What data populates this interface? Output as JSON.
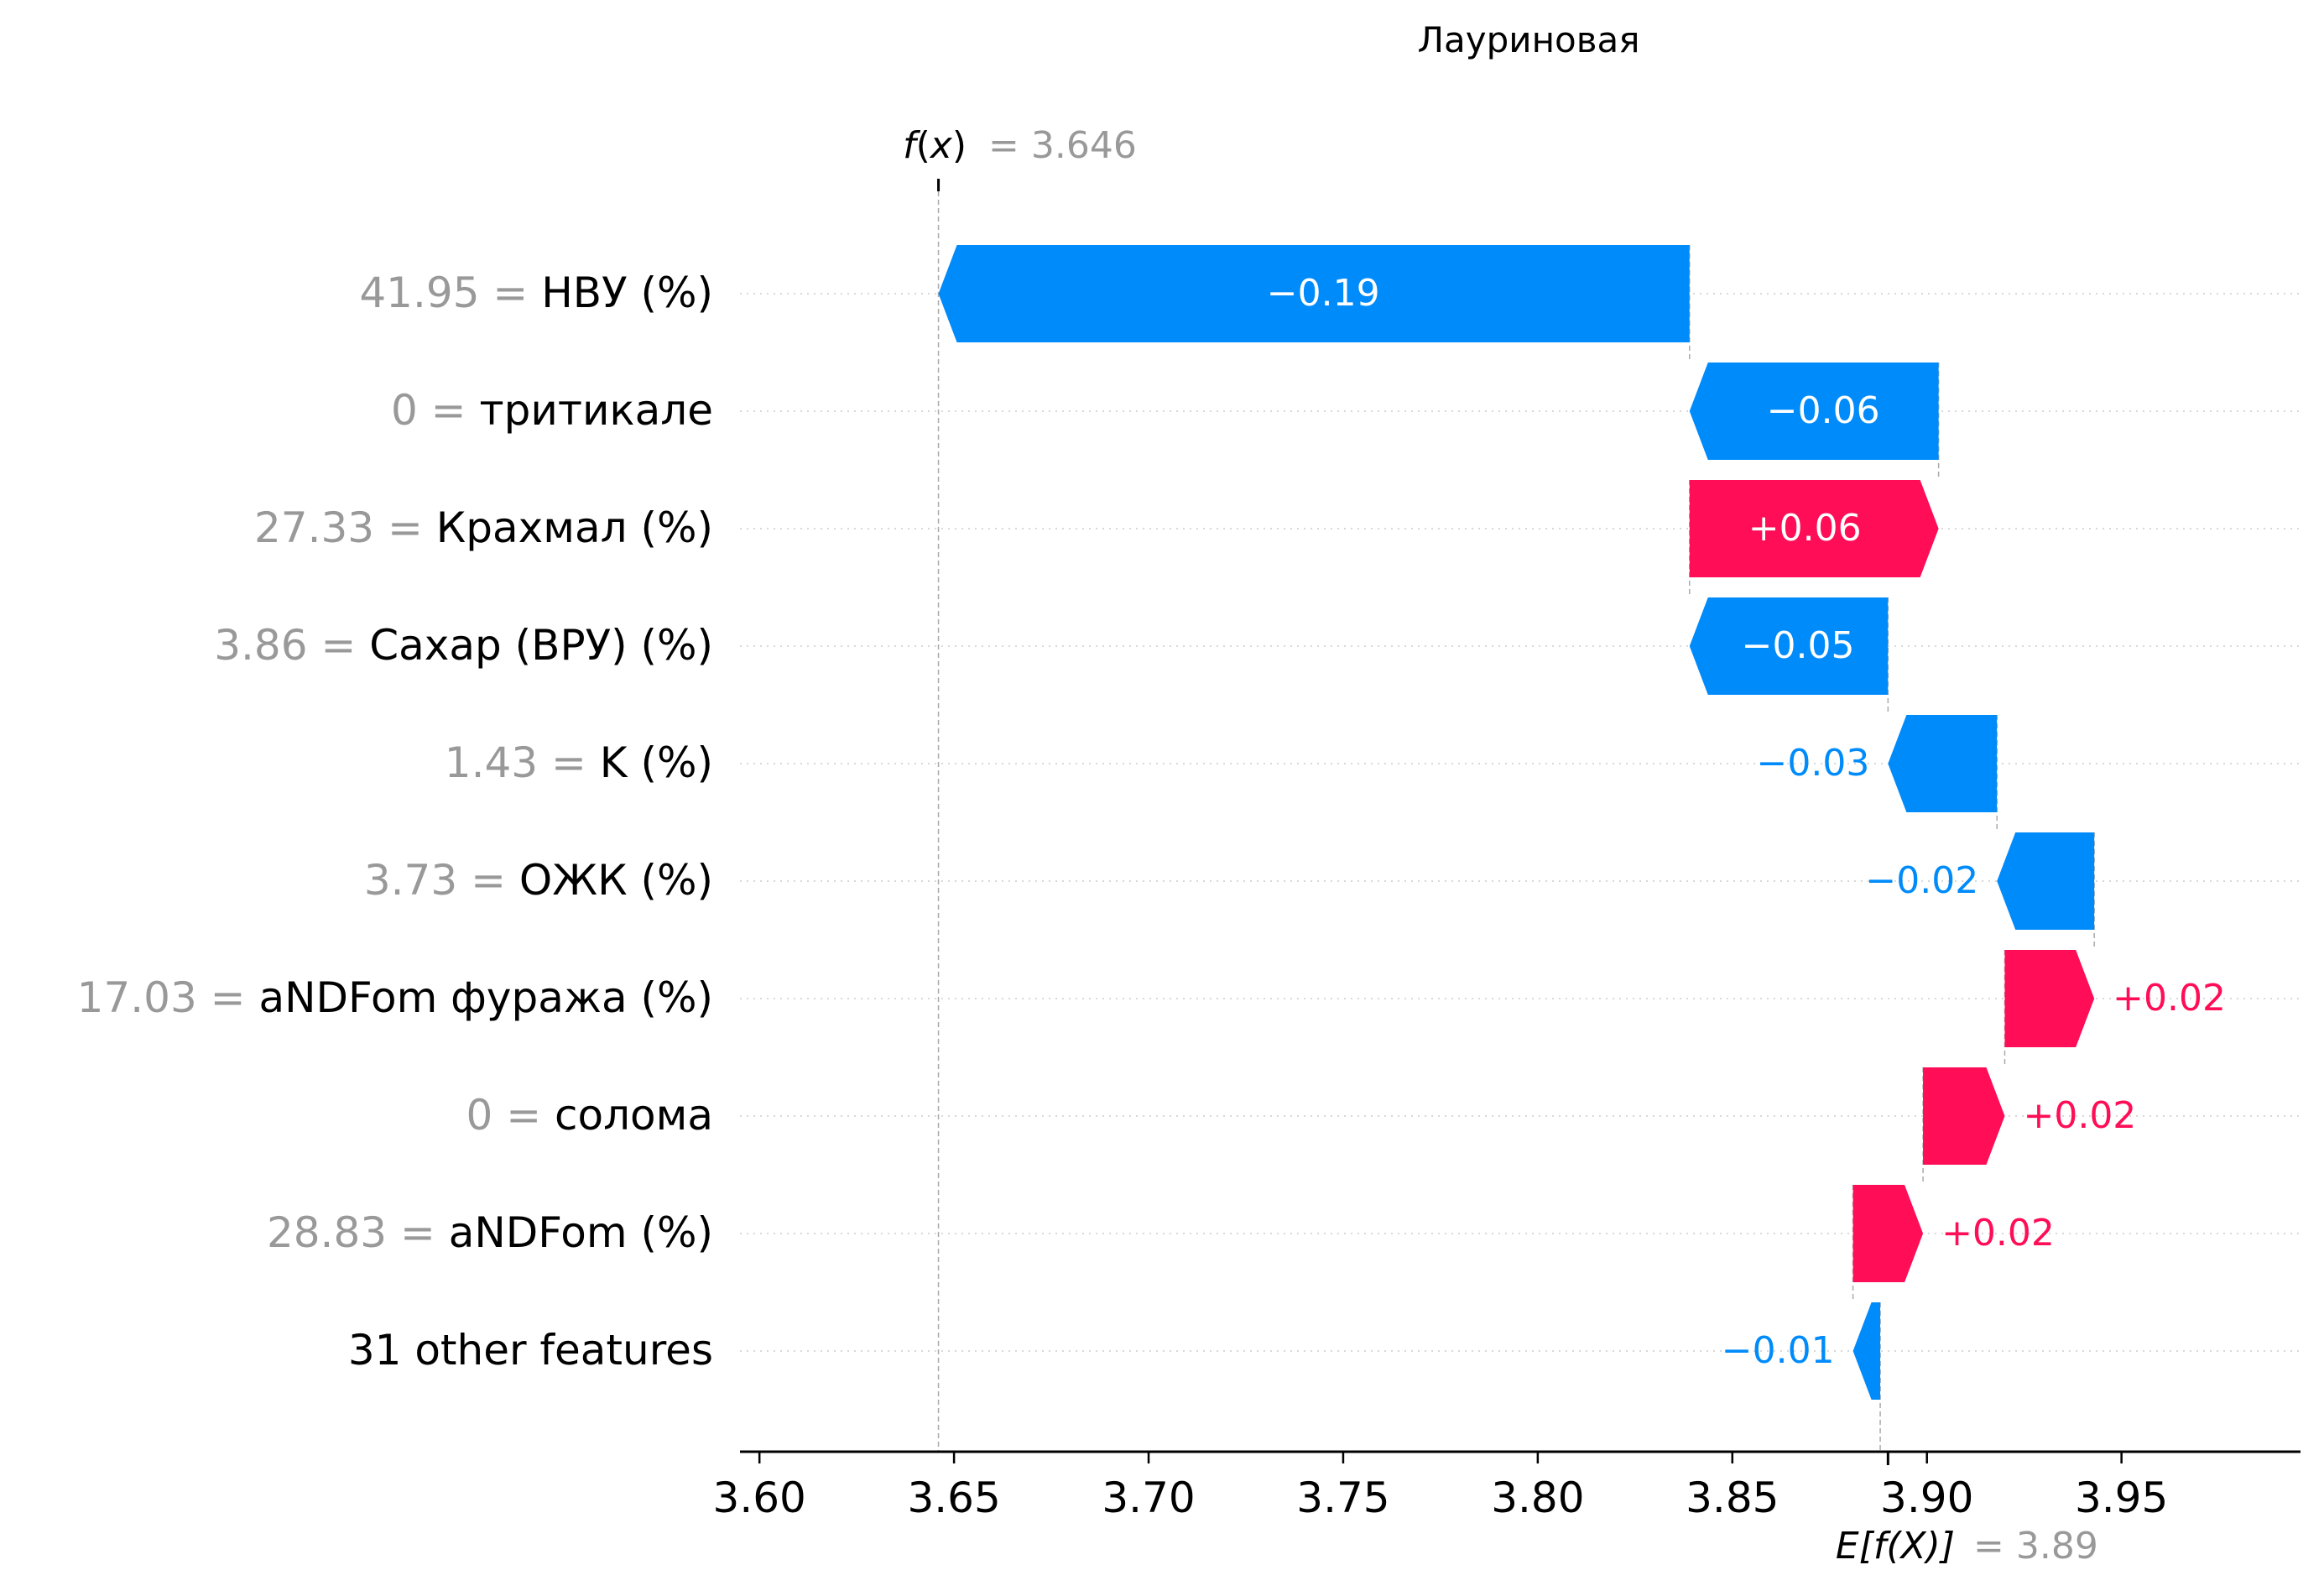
{
  "chart_data": {
    "type": "waterfall",
    "title": "Лауриновая",
    "fx": {
      "symbol_f": "f",
      "symbol_x": "x",
      "value_label": "= 3.646",
      "value": 3.646
    },
    "base": {
      "label_main": "E[f(X)]",
      "value_label": "= 3.89",
      "value": 3.89
    },
    "xlim": [
      3.595,
      3.996
    ],
    "xticks": [
      3.6,
      3.65,
      3.7,
      3.75,
      3.8,
      3.85,
      3.9,
      3.95
    ],
    "xtick_labels": [
      "3.60",
      "3.65",
      "3.70",
      "3.75",
      "3.80",
      "3.85",
      "3.90",
      "3.95"
    ],
    "colors": {
      "positive": "#ff0d57",
      "negative": "#008bfb",
      "value_text": "#999999",
      "axis": "#000000"
    },
    "rows": [
      {
        "value": "41.95",
        "feature": "НВУ (%)",
        "contribution": -0.193,
        "label": "−0.19",
        "label_inside": true
      },
      {
        "value": "0",
        "feature": "тритикале",
        "contribution": -0.064,
        "label": "−0.06",
        "label_inside": true
      },
      {
        "value": "27.33",
        "feature": "Крахмал (%)",
        "contribution": 0.064,
        "label": "+0.06",
        "label_inside": true
      },
      {
        "value": "3.86",
        "feature": "Сахар (ВРУ) (%)",
        "contribution": -0.051,
        "label": "−0.05",
        "label_inside": true
      },
      {
        "value": "1.43",
        "feature": "K (%)",
        "contribution": -0.028,
        "label": "−0.03",
        "label_inside": false
      },
      {
        "value": "3.73",
        "feature": "ОЖК (%)",
        "contribution": -0.025,
        "label": "−0.02",
        "label_inside": false
      },
      {
        "value": "17.03",
        "feature": "aNDFom фуража (%)",
        "contribution": 0.023,
        "label": "+0.02",
        "label_inside": false
      },
      {
        "value": "0",
        "feature": "солома",
        "contribution": 0.021,
        "label": "+0.02",
        "label_inside": false
      },
      {
        "value": "28.83",
        "feature": "aNDFom (%)",
        "contribution": 0.018,
        "label": "+0.02",
        "label_inside": false
      },
      {
        "value": "",
        "feature": "31 other features",
        "contribution": -0.007,
        "label": "−0.01",
        "label_inside": false
      }
    ]
  }
}
